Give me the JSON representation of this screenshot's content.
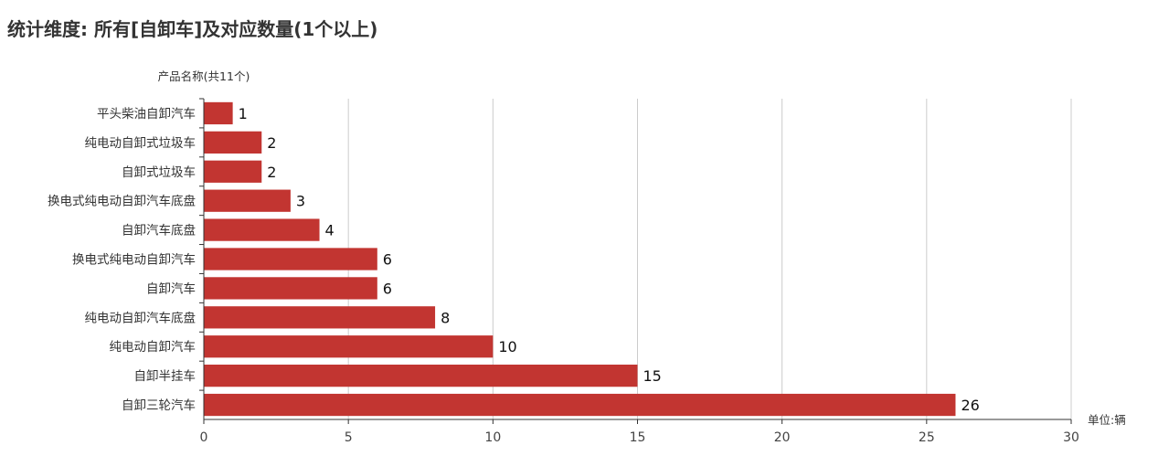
{
  "page": {
    "title": "统计维度: 所有[自卸车]及对应数量(1个以上)"
  },
  "chart_data": {
    "type": "bar",
    "orientation": "horizontal",
    "categories": [
      "平头柴油自卸汽车",
      "纯电动自卸式垃圾车",
      "自卸式垃圾车",
      "换电式纯电动自卸汽车底盘",
      "自卸汽车底盘",
      "换电式纯电动自卸汽车",
      "自卸汽车",
      "纯电动自卸汽车底盘",
      "纯电动自卸汽车",
      "自卸半挂车",
      "自卸三轮汽车"
    ],
    "values": [
      1,
      2,
      2,
      3,
      4,
      6,
      6,
      8,
      10,
      15,
      26
    ],
    "ylabel": "产品名称(共11个)",
    "xunit": "单位:辆",
    "xlim": [
      0,
      30
    ],
    "xticks": [
      0,
      5,
      10,
      15,
      20,
      25,
      30
    ],
    "bar_color": "#c23531",
    "grid": true,
    "legend": "none"
  }
}
